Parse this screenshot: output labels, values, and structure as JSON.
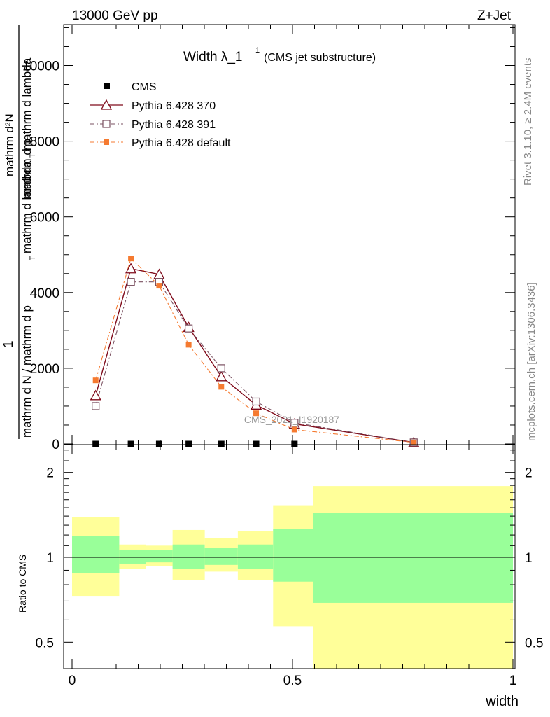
{
  "header": {
    "energy_label": "13000 GeV pp",
    "process_label": "Z+Jet"
  },
  "side_labels": {
    "rivet": "Rivet 3.1.10, ≥ 2.4M events",
    "mcplots": "mcplots.cern.ch [arXiv:1306.3436]"
  },
  "watermark": "CMS_2021_I1920187",
  "chart_data": [
    {
      "type": "line",
      "title_main": "Width λ_1",
      "title_sup": "1",
      "title_sub": "(CMS jet substructure)",
      "ylabel_upper": "mathrm d²N",
      "ylabel_upper_b": "mathrm d p",
      "ylabel_upper_c": "T",
      "ylabel_upper_d": "mathrm d lambda",
      "ylabel_lower": "mathrm d N / mathrm d p",
      "ylabel_lower_b": "T",
      "ylabel_lower_c": "mathrm d lambda",
      "ylabel_one": "1",
      "xlim": [
        0,
        1
      ],
      "ylim": [
        0,
        11000
      ],
      "ytick_values": [
        0,
        2000,
        4000,
        6000,
        8000,
        10000
      ],
      "ytick_labels": [
        "0",
        "2000",
        "4000",
        "6000",
        "8000",
        "10000"
      ],
      "series": [
        {
          "name": "CMS",
          "color": "#000000",
          "marker": "filled-square",
          "x": [
            0.0535,
            0.1335,
            0.1975,
            0.2645,
            0.3385,
            0.4175,
            0.5045
          ],
          "y": [
            0,
            0,
            0,
            0,
            0,
            0,
            0
          ]
        },
        {
          "name": "Pythia 6.428 370",
          "color": "#7f0a1a",
          "marker": "open-triangle",
          "dash": "",
          "x": [
            0.0535,
            0.1335,
            0.1975,
            0.2645,
            0.3385,
            0.4175,
            0.5045,
            0.775
          ],
          "y": [
            1280,
            4630,
            4480,
            3080,
            1780,
            1030,
            530,
            40
          ]
        },
        {
          "name": "Pythia 6.428 391",
          "color": "#7a5060",
          "marker": "open-square",
          "dash": "7,3,2,3",
          "x": [
            0.0535,
            0.1335,
            0.1975,
            0.2645,
            0.3385,
            0.4175,
            0.5045,
            0.775
          ],
          "y": [
            1000,
            4280,
            4280,
            3050,
            2000,
            1120,
            560,
            40
          ]
        },
        {
          "name": "Pythia 6.428 default",
          "color": "#f57a30",
          "marker": "filled-square",
          "dash": "7,3,2,3",
          "x": [
            0.0535,
            0.1335,
            0.1975,
            0.2645,
            0.3385,
            0.4175,
            0.5045,
            0.775
          ],
          "y": [
            1680,
            4900,
            4180,
            2620,
            1510,
            810,
            380,
            40
          ]
        }
      ]
    },
    {
      "type": "area",
      "ylabel": "Ratio to CMS",
      "xlabel": "width",
      "xlim": [
        0,
        1
      ],
      "ylim": [
        0.4,
        2.5
      ],
      "ylog": true,
      "ytick_values": [
        0.5,
        1,
        2
      ],
      "ytick_labels": [
        "0.5",
        "1",
        "2"
      ],
      "xtick_values": [
        0,
        0.5,
        1
      ],
      "xtick_labels": [
        "0",
        "0.5",
        "1"
      ],
      "reference_line": 1,
      "band_colors": {
        "outer": "#ffff99",
        "inner": "#99ff99"
      },
      "bins": [
        {
          "x0": 0.0,
          "x1": 0.107,
          "outer": [
            0.73,
            1.39
          ],
          "inner": [
            0.88,
            1.19
          ]
        },
        {
          "x0": 0.107,
          "x1": 0.167,
          "outer": [
            0.91,
            1.11
          ],
          "inner": [
            0.95,
            1.065
          ]
        },
        {
          "x0": 0.167,
          "x1": 0.228,
          "outer": [
            0.93,
            1.1
          ],
          "inner": [
            0.96,
            1.06
          ]
        },
        {
          "x0": 0.228,
          "x1": 0.301,
          "outer": [
            0.83,
            1.25
          ],
          "inner": [
            0.91,
            1.11
          ]
        },
        {
          "x0": 0.301,
          "x1": 0.376,
          "outer": [
            0.89,
            1.17
          ],
          "inner": [
            0.94,
            1.08
          ]
        },
        {
          "x0": 0.376,
          "x1": 0.456,
          "outer": [
            0.83,
            1.24
          ],
          "inner": [
            0.91,
            1.11
          ]
        },
        {
          "x0": 0.456,
          "x1": 0.547,
          "outer": [
            0.57,
            1.53
          ],
          "inner": [
            0.82,
            1.26
          ]
        },
        {
          "x0": 0.547,
          "x1": 1.0,
          "outer": [
            0.35,
            1.79
          ],
          "inner": [
            0.69,
            1.44
          ]
        }
      ]
    }
  ]
}
